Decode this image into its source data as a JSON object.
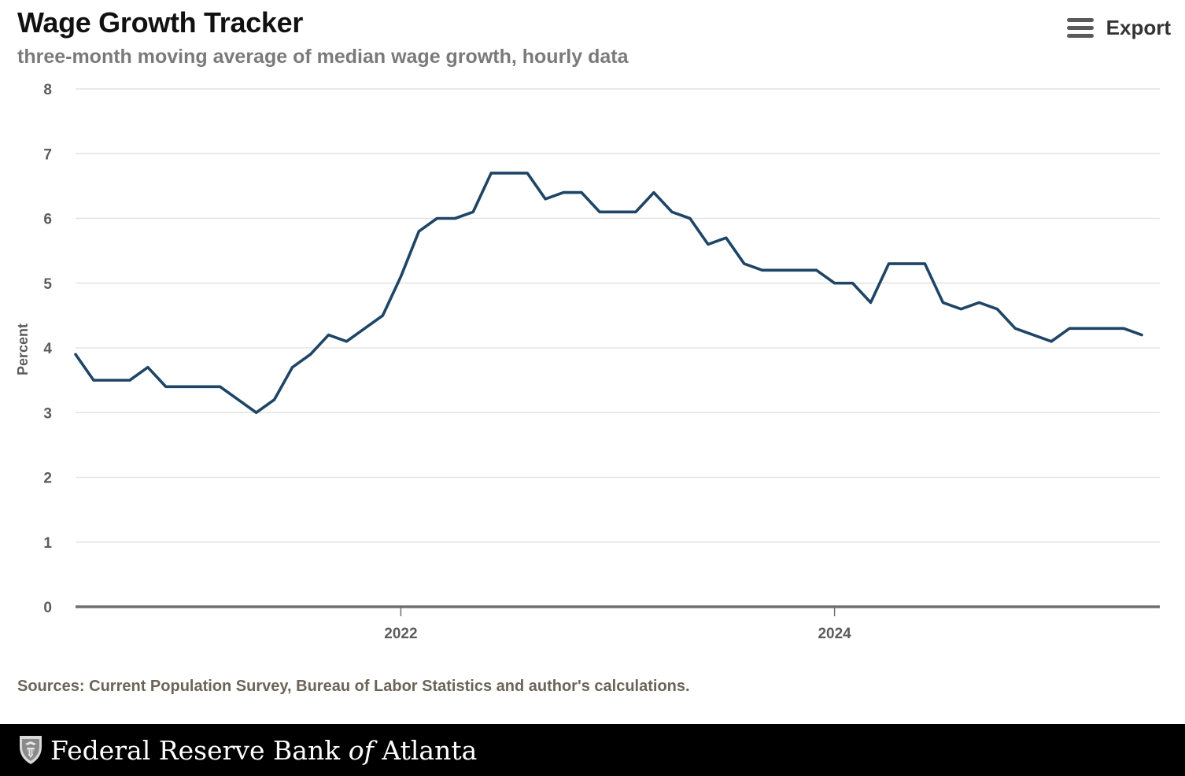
{
  "header": {
    "title": "Wage Growth Tracker",
    "subtitle": "three-month moving average of median wage growth, hourly data"
  },
  "export": {
    "label": "Export",
    "icon": "hamburger-menu-icon"
  },
  "sources": "Sources: Current Population Survey, Bureau of Labor Statistics and author's calculations.",
  "footer": {
    "name_part1": "Federal Reserve Bank",
    "name_part2": "of",
    "name_part3": "Atlanta",
    "seal_icon": "eagle-seal-icon"
  },
  "chart_data": {
    "type": "line",
    "title": "Wage Growth Tracker",
    "subtitle": "three-month moving average of median wage growth, hourly data",
    "xlabel": "",
    "ylabel": "Percent",
    "ylim": [
      0,
      8
    ],
    "yticks": [
      "0",
      "1",
      "2",
      "3",
      "4",
      "5",
      "6",
      "7",
      "8"
    ],
    "xlim": [
      "2020-07",
      "2025-07"
    ],
    "xticks": [
      {
        "label": "2022",
        "date": "2022-01"
      },
      {
        "label": "2024",
        "date": "2024-01"
      }
    ],
    "grid": true,
    "legend": "none",
    "color": "#1f4566",
    "series": [
      {
        "x": [
          "2020-07",
          "2020-08",
          "2020-09",
          "2020-10",
          "2020-11",
          "2020-12",
          "2021-01",
          "2021-02",
          "2021-03",
          "2021-04",
          "2021-05",
          "2021-06",
          "2021-07",
          "2021-08",
          "2021-09",
          "2021-10",
          "2021-11",
          "2021-12",
          "2022-01",
          "2022-02",
          "2022-03",
          "2022-04",
          "2022-05",
          "2022-06",
          "2022-07",
          "2022-08",
          "2022-09",
          "2022-10",
          "2022-11",
          "2022-12",
          "2023-01",
          "2023-02",
          "2023-03",
          "2023-04",
          "2023-05",
          "2023-06",
          "2023-07",
          "2023-08",
          "2023-09",
          "2023-10",
          "2023-11",
          "2023-12",
          "2024-01",
          "2024-02",
          "2024-03",
          "2024-04",
          "2024-05",
          "2024-06",
          "2024-07",
          "2024-08",
          "2024-09",
          "2024-10",
          "2024-11",
          "2024-12",
          "2025-01",
          "2025-02",
          "2025-03",
          "2025-04",
          "2025-05",
          "2025-06"
        ],
        "values": [
          3.9,
          3.5,
          3.5,
          3.5,
          3.7,
          3.4,
          3.4,
          3.4,
          3.4,
          3.2,
          3.0,
          3.2,
          3.7,
          3.9,
          4.2,
          4.1,
          4.3,
          4.5,
          5.1,
          5.8,
          6.0,
          6.0,
          6.1,
          6.7,
          6.7,
          6.7,
          6.3,
          6.4,
          6.4,
          6.1,
          6.1,
          6.1,
          6.4,
          6.1,
          6.0,
          5.6,
          5.7,
          5.3,
          5.2,
          5.2,
          5.2,
          5.2,
          5.0,
          5.0,
          4.7,
          5.3,
          5.3,
          5.3,
          4.7,
          4.6,
          4.7,
          4.6,
          4.3,
          4.2,
          4.1,
          4.3,
          4.3,
          4.3,
          4.3,
          4.2
        ]
      }
    ]
  }
}
